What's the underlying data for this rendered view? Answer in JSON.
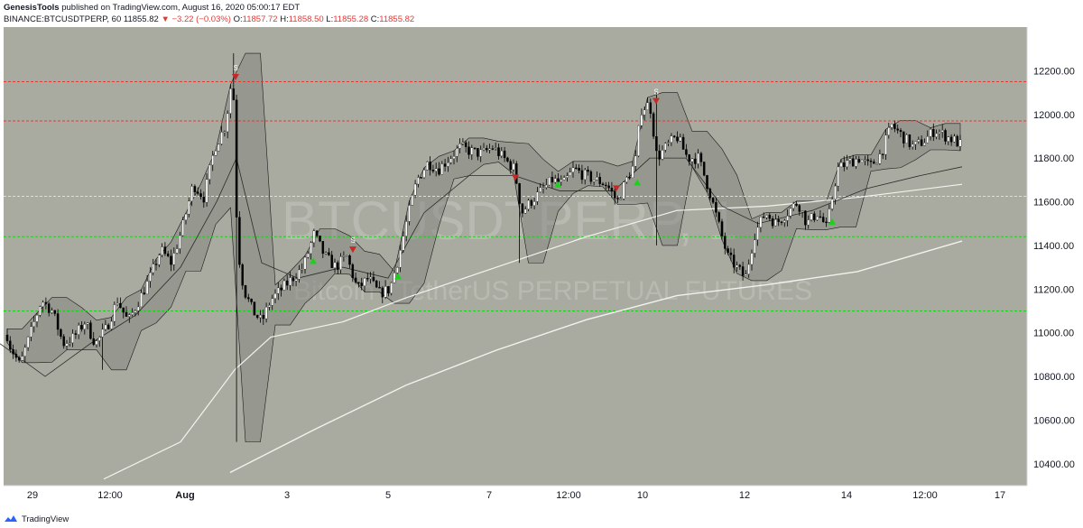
{
  "header": {
    "author": "GenesisTools",
    "published": " published on TradingView.com, August 16, 2020 05:00:17 EDT",
    "symbol": "BINANCE:BTCUSDTPERP, 60",
    "last": "11855.82",
    "change": "−3.22 (−0.03%)",
    "o_label": "O:",
    "o": "11857.72",
    "h_label": "H:",
    "h": "11858.50",
    "l_label": "L:",
    "l": "11855.28",
    "c_label": "C:",
    "c": "11855.82"
  },
  "watermark": {
    "symbol": "BTCUSDTPERP, 1",
    "desc": "Bitcoin / TetherUS PERPETUAL FUTURES"
  },
  "footer": {
    "brand": "TradingView"
  },
  "colors": {
    "background": "#a9aba1",
    "bull": "#ffffff",
    "bear": "#000000",
    "red_line": "#e53935",
    "green_line": "#1bd11b",
    "yellow_line": "#ffeb3b",
    "ma": "#f2f2ee",
    "cloud": "#7e7f78"
  },
  "chart_data": {
    "type": "candlestick",
    "y_axis": {
      "range": [
        10300,
        12400
      ],
      "ticks": [
        10400,
        10600,
        10800,
        11000,
        11200,
        11400,
        11600,
        11800,
        12000,
        12200
      ],
      "labels": [
        "10400.00",
        "10600.00",
        "10800.00",
        "11000.00",
        "11200.00",
        "11400.00",
        "11600.00",
        "11800.00",
        "12000.00",
        "12200.00"
      ]
    },
    "x_axis": {
      "labels": [
        "29",
        "12:00",
        "Aug",
        "3",
        "5",
        "7",
        "12:00",
        "10",
        "12",
        "14",
        "12:00",
        "17"
      ]
    },
    "horizontal_lines": [
      {
        "price": 12150,
        "color": "red"
      },
      {
        "price": 11970,
        "color": "red"
      },
      {
        "price": 11625,
        "color": "yellow"
      },
      {
        "price": 11440,
        "color": "green"
      },
      {
        "price": 11100,
        "color": "green"
      }
    ],
    "price_path": [
      [
        0,
        11150
      ],
      [
        10,
        10950
      ],
      [
        22,
        10850
      ],
      [
        34,
        11000
      ],
      [
        46,
        11150
      ],
      [
        58,
        11100
      ],
      [
        70,
        10950
      ],
      [
        82,
        10980
      ],
      [
        94,
        11050
      ],
      [
        106,
        10950
      ],
      [
        118,
        11020
      ],
      [
        130,
        11150
      ],
      [
        142,
        11050
      ],
      [
        154,
        11150
      ],
      [
        166,
        11250
      ],
      [
        178,
        11380
      ],
      [
        190,
        11320
      ],
      [
        202,
        11480
      ],
      [
        214,
        11680
      ],
      [
        226,
        11620
      ],
      [
        238,
        11850
      ],
      [
        250,
        11950
      ],
      [
        258,
        12200
      ],
      [
        263,
        11400
      ],
      [
        270,
        11200
      ],
      [
        280,
        11100
      ],
      [
        290,
        11050
      ],
      [
        300,
        11150
      ],
      [
        312,
        11200
      ],
      [
        324,
        11250
      ],
      [
        336,
        11300
      ],
      [
        348,
        11450
      ],
      [
        360,
        11350
      ],
      [
        372,
        11300
      ],
      [
        384,
        11350
      ],
      [
        396,
        11200
      ],
      [
        408,
        11250
      ],
      [
        420,
        11180
      ],
      [
        432,
        11200
      ],
      [
        442,
        11350
      ],
      [
        450,
        11500
      ],
      [
        462,
        11700
      ],
      [
        474,
        11780
      ],
      [
        486,
        11750
      ],
      [
        498,
        11800
      ],
      [
        510,
        11850
      ],
      [
        522,
        11830
      ],
      [
        534,
        11820
      ],
      [
        546,
        11850
      ],
      [
        558,
        11800
      ],
      [
        570,
        11750
      ],
      [
        578,
        11550
      ],
      [
        588,
        11600
      ],
      [
        600,
        11650
      ],
      [
        612,
        11700
      ],
      [
        624,
        11680
      ],
      [
        636,
        11750
      ],
      [
        648,
        11720
      ],
      [
        660,
        11700
      ],
      [
        672,
        11680
      ],
      [
        684,
        11600
      ],
      [
        694,
        11700
      ],
      [
        704,
        11780
      ],
      [
        710,
        12020
      ],
      [
        720,
        12050
      ],
      [
        728,
        11800
      ],
      [
        738,
        11850
      ],
      [
        750,
        11900
      ],
      [
        762,
        11800
      ],
      [
        774,
        11800
      ],
      [
        786,
        11650
      ],
      [
        796,
        11500
      ],
      [
        806,
        11350
      ],
      [
        816,
        11300
      ],
      [
        826,
        11250
      ],
      [
        836,
        11450
      ],
      [
        848,
        11550
      ],
      [
        860,
        11500
      ],
      [
        872,
        11550
      ],
      [
        884,
        11600
      ],
      [
        894,
        11500
      ],
      [
        906,
        11550
      ],
      [
        916,
        11480
      ],
      [
        928,
        11750
      ],
      [
        940,
        11780
      ],
      [
        952,
        11800
      ],
      [
        964,
        11760
      ],
      [
        976,
        11820
      ],
      [
        988,
        11950
      ],
      [
        1000,
        11900
      ],
      [
        1012,
        11850
      ],
      [
        1024,
        11880
      ],
      [
        1036,
        11930
      ],
      [
        1048,
        11900
      ],
      [
        1058,
        11880
      ],
      [
        1066,
        11855
      ]
    ],
    "signals": [
      {
        "time_index": 261,
        "type": "sell",
        "price": 12160,
        "label": "S"
      },
      {
        "time_index": 391,
        "type": "sell",
        "price": 11370,
        "label": "S"
      },
      {
        "time_index": 571,
        "type": "sell",
        "price": 11700,
        "label": ""
      },
      {
        "time_index": 683,
        "type": "sell",
        "price": 11650,
        "label": ""
      },
      {
        "time_index": 727,
        "type": "sell",
        "price": 12050,
        "label": "S"
      },
      {
        "time_index": 441,
        "type": "buy",
        "price": 11270,
        "label": ""
      },
      {
        "time_index": 347,
        "type": "buy",
        "price": 11340,
        "label": ""
      },
      {
        "time_index": 618,
        "type": "buy",
        "price": 11690,
        "label": ""
      },
      {
        "time_index": 706,
        "type": "buy",
        "price": 11700,
        "label": ""
      },
      {
        "time_index": 922,
        "type": "buy",
        "price": 11520,
        "label": ""
      }
    ],
    "ma_slow": [
      [
        115,
        10330
      ],
      [
        200,
        10500
      ],
      [
        260,
        10830
      ],
      [
        300,
        10980
      ],
      [
        380,
        11050
      ],
      [
        450,
        11160
      ],
      [
        550,
        11300
      ],
      [
        650,
        11440
      ],
      [
        750,
        11560
      ],
      [
        850,
        11580
      ],
      [
        950,
        11620
      ],
      [
        1066,
        11680
      ]
    ],
    "ma_long": [
      [
        255,
        10360
      ],
      [
        350,
        10560
      ],
      [
        450,
        10760
      ],
      [
        550,
        10920
      ],
      [
        650,
        11060
      ],
      [
        750,
        11170
      ],
      [
        850,
        11220
      ],
      [
        950,
        11280
      ],
      [
        1066,
        11420
      ]
    ],
    "ma_fast": [
      [
        0,
        10950
      ],
      [
        50,
        10800
      ],
      [
        100,
        10950
      ],
      [
        150,
        11080
      ],
      [
        200,
        11300
      ],
      [
        240,
        11600
      ],
      [
        262,
        11800
      ],
      [
        290,
        11320
      ],
      [
        330,
        11250
      ],
      [
        380,
        11300
      ],
      [
        430,
        11250
      ],
      [
        470,
        11550
      ],
      [
        520,
        11720
      ],
      [
        570,
        11720
      ],
      [
        620,
        11650
      ],
      [
        680,
        11650
      ],
      [
        720,
        11800
      ],
      [
        760,
        11800
      ],
      [
        800,
        11580
      ],
      [
        840,
        11500
      ],
      [
        900,
        11560
      ],
      [
        960,
        11660
      ],
      [
        1020,
        11720
      ],
      [
        1066,
        11760
      ]
    ]
  }
}
